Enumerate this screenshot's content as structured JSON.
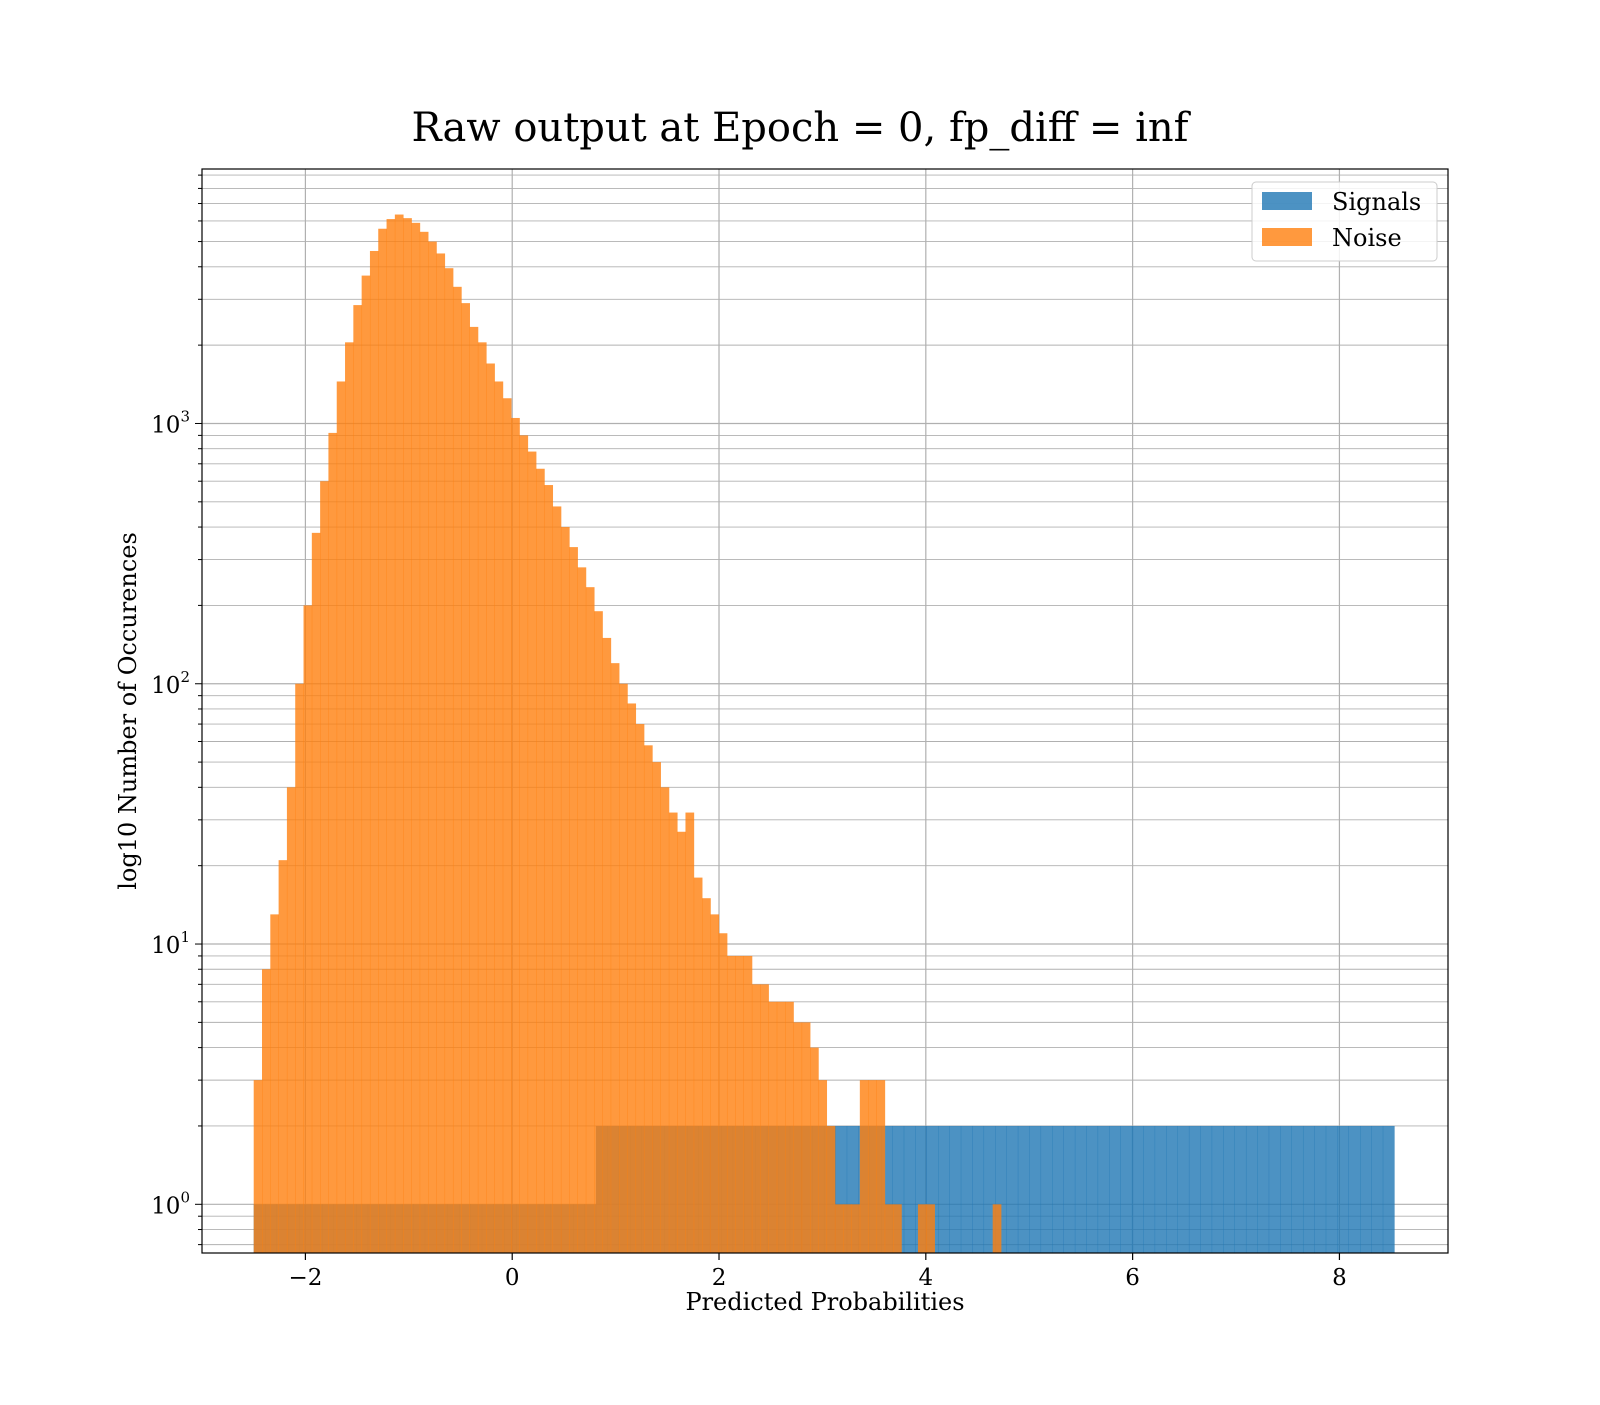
{
  "chart_data": {
    "type": "bar",
    "title": "Raw output at Epoch = 0, fp_diff = inf",
    "xlabel": "Predicted Probabilities",
    "ylabel": "log10 Number of Occurences",
    "xlim": [
      -3.0,
      9.05
    ],
    "ylim": [
      0.65,
      9500
    ],
    "yscale": "log",
    "grid": true,
    "legend_position": "top-right",
    "x_ticks": [
      {
        "value": -2,
        "label": "−2"
      },
      {
        "value": 0,
        "label": "0"
      },
      {
        "value": 2,
        "label": "2"
      },
      {
        "value": 4,
        "label": "4"
      },
      {
        "value": 6,
        "label": "6"
      },
      {
        "value": 8,
        "label": "8"
      }
    ],
    "y_ticks": [
      {
        "value": 1,
        "base": "10",
        "exp": "0"
      },
      {
        "value": 10,
        "base": "10",
        "exp": "1"
      },
      {
        "value": 100,
        "base": "10",
        "exp": "2"
      },
      {
        "value": 1000,
        "base": "10",
        "exp": "3"
      }
    ],
    "series": [
      {
        "name": "Signals",
        "color": "#1f77b4",
        "opacity": 0.8,
        "bin_start": -2.5,
        "bin_width": 0.1103,
        "counts": [
          1,
          1,
          1,
          1,
          1,
          1,
          1,
          1,
          1,
          1,
          1,
          1,
          1,
          1,
          1,
          1,
          1,
          1,
          1,
          1,
          1,
          1,
          1,
          1,
          1,
          1,
          1,
          1,
          1,
          1,
          2,
          2,
          2,
          2,
          2,
          2,
          2,
          2,
          2,
          2,
          2,
          2,
          2,
          2,
          2,
          2,
          2,
          2,
          2,
          2,
          2,
          2,
          2,
          2,
          2,
          2,
          2,
          2,
          2,
          2,
          2,
          2,
          2,
          2,
          2,
          2,
          2,
          2,
          2,
          2,
          2,
          2,
          2,
          2,
          2,
          2,
          2,
          2,
          2,
          2,
          2,
          2,
          2,
          2,
          2,
          2,
          2,
          2,
          2,
          2,
          2,
          2,
          2,
          2,
          2,
          2,
          2,
          2,
          2,
          2
        ]
      },
      {
        "name": "Noise",
        "color": "#ff7f0e",
        "opacity": 0.8,
        "bin_start": -2.5,
        "bin_width": 0.0803,
        "counts": [
          3,
          8,
          13,
          21,
          40,
          100,
          200,
          380,
          600,
          920,
          1450,
          2050,
          2850,
          3700,
          4600,
          5600,
          6100,
          6350,
          6150,
          5900,
          5450,
          5000,
          4500,
          3950,
          3350,
          2900,
          2350,
          2050,
          1700,
          1450,
          1250,
          1050,
          900,
          780,
          670,
          580,
          480,
          400,
          335,
          280,
          235,
          190,
          150,
          120,
          100,
          84,
          70,
          58,
          50,
          40,
          32,
          27,
          32,
          18,
          15,
          13,
          11,
          9,
          9,
          9,
          7,
          7,
          6,
          6,
          6,
          5,
          5,
          4,
          3,
          2,
          1,
          1,
          1,
          3,
          3,
          3,
          1,
          1,
          0,
          0,
          1,
          1,
          0,
          0,
          0,
          0,
          0,
          0,
          0,
          1,
          0,
          0,
          0,
          0,
          0,
          0,
          0,
          0,
          0,
          0,
          0,
          0
        ]
      }
    ],
    "legend": [
      {
        "label": "Signals",
        "color": "#1f77b4"
      },
      {
        "label": "Noise",
        "color": "#ff7f0e"
      }
    ]
  }
}
